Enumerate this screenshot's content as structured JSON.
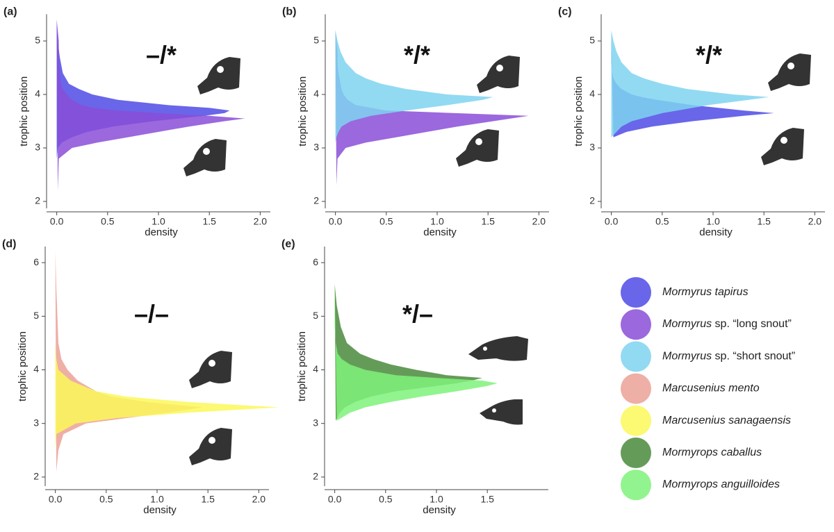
{
  "chart_data": [
    {
      "type": "density",
      "panel_label": "(a)",
      "annotation": "–/*",
      "xlabel": "density",
      "ylabel": "trophic position",
      "xlim": [
        -0.1,
        2.1
      ],
      "ylim": [
        1.87,
        5.5
      ],
      "xticks": [
        {
          "value": 0,
          "label": "0.0"
        },
        0.5,
        {
          "value": 1,
          "label": "1.0"
        },
        1.5,
        {
          "value": 2,
          "label": "2.0"
        }
      ],
      "yticks": [
        2,
        3,
        4,
        5
      ],
      "y": [
        2.2,
        2.8,
        3.0,
        3.1,
        3.2,
        3.3,
        3.4,
        3.5,
        3.55,
        3.6,
        3.65,
        3.7,
        3.75,
        3.8,
        3.9,
        4.0,
        4.1,
        4.2,
        4.4,
        4.7,
        5.0,
        5.4
      ],
      "series": [
        {
          "name": "Mormyrus tapirus",
          "color": "#4f4be6",
          "values": [
            0,
            0,
            0.01,
            0.05,
            0.15,
            0.3,
            0.55,
            0.95,
            1.2,
            1.45,
            1.65,
            1.7,
            1.5,
            1.1,
            0.6,
            0.35,
            0.22,
            0.12,
            0.06,
            0.03,
            0.01,
            0
          ]
        },
        {
          "name": "Mormyrus sp. “long snout”",
          "color": "#8a4ed8",
          "values": [
            0.01,
            0.02,
            0.15,
            0.4,
            0.7,
            1.0,
            1.3,
            1.65,
            1.85,
            1.5,
            1.0,
            0.6,
            0.35,
            0.25,
            0.15,
            0.1,
            0.06,
            0.04,
            0.03,
            0.02,
            0.02,
            0
          ]
        }
      ]
    },
    {
      "type": "density",
      "panel_label": "(b)",
      "annotation": "*/*",
      "xlabel": "density",
      "ylabel": "trophic position",
      "xlim": [
        -0.1,
        2.1
      ],
      "ylim": [
        1.87,
        5.5
      ],
      "xticks": [
        {
          "value": 0,
          "label": "0.0"
        },
        0.5,
        {
          "value": 1,
          "label": "1.0"
        },
        1.5,
        {
          "value": 2,
          "label": "2.0"
        }
      ],
      "yticks": [
        2,
        3,
        4,
        5
      ],
      "y": [
        2.3,
        2.8,
        3.0,
        3.1,
        3.2,
        3.3,
        3.4,
        3.5,
        3.6,
        3.7,
        3.8,
        3.9,
        3.95,
        4.0,
        4.1,
        4.2,
        4.3,
        4.4,
        4.6,
        4.8,
        5.0,
        5.2
      ],
      "series": [
        {
          "name": "Mormyrus sp. “long snout”",
          "color": "#8a4ed8",
          "values": [
            0.01,
            0.02,
            0.1,
            0.3,
            0.6,
            0.9,
            1.2,
            1.55,
            1.9,
            0.5,
            0.2,
            0.12,
            0.1,
            0.08,
            0.06,
            0.05,
            0.04,
            0.03,
            0.02,
            0.02,
            0.01,
            0
          ]
        },
        {
          "name": "Mormyrus sp. “short snout”",
          "color": "#7fd3f0",
          "values": [
            0,
            0,
            0,
            0,
            0.01,
            0.03,
            0.06,
            0.15,
            0.35,
            0.7,
            1.1,
            1.45,
            1.55,
            1.1,
            0.7,
            0.45,
            0.3,
            0.2,
            0.1,
            0.05,
            0.02,
            0
          ]
        }
      ]
    },
    {
      "type": "density",
      "panel_label": "(c)",
      "annotation": "*/*",
      "xlabel": "density",
      "ylabel": "trophic position",
      "xlim": [
        -0.1,
        2.1
      ],
      "ylim": [
        1.87,
        5.5
      ],
      "xticks": [
        {
          "value": 0,
          "label": "0.0"
        },
        0.5,
        {
          "value": 1,
          "label": "1.0"
        },
        1.5,
        {
          "value": 2,
          "label": "2.0"
        }
      ],
      "yticks": [
        2,
        3,
        4,
        5
      ],
      "y": [
        3.2,
        3.3,
        3.4,
        3.5,
        3.6,
        3.65,
        3.7,
        3.8,
        3.9,
        3.95,
        4.0,
        4.1,
        4.2,
        4.3,
        4.4,
        4.6,
        4.8,
        5.0,
        5.2
      ],
      "series": [
        {
          "name": "Mormyrus tapirus",
          "color": "#4f4be6",
          "values": [
            0.02,
            0.15,
            0.4,
            0.8,
            1.3,
            1.6,
            1.3,
            0.8,
            0.45,
            0.3,
            0.2,
            0.1,
            0.05,
            0.02,
            0.01,
            0,
            0,
            0,
            0
          ]
        },
        {
          "name": "Mormyrus sp. “short snout”",
          "color": "#7fd3f0",
          "values": [
            0,
            0.05,
            0.1,
            0.2,
            0.4,
            0.5,
            0.65,
            0.95,
            1.35,
            1.55,
            1.2,
            0.75,
            0.5,
            0.32,
            0.2,
            0.1,
            0.05,
            0.02,
            0
          ]
        }
      ]
    },
    {
      "type": "density",
      "panel_label": "(d)",
      "annotation": "–/–",
      "xlabel": "density",
      "ylabel": "trophic position",
      "xlim": [
        -0.1,
        2.1
      ],
      "ylim": [
        1.83,
        6.3
      ],
      "xticks": [
        {
          "value": 0,
          "label": "0.0"
        },
        0.5,
        {
          "value": 1,
          "label": "1.0"
        },
        1.5,
        {
          "value": 2,
          "label": "2.0"
        }
      ],
      "yticks": [
        2,
        3,
        4,
        5,
        6
      ],
      "y": [
        2.1,
        2.5,
        2.8,
        3.0,
        3.1,
        3.2,
        3.3,
        3.4,
        3.5,
        3.6,
        3.8,
        4.0,
        4.2,
        4.5,
        5.0,
        5.5,
        6.2
      ],
      "series": [
        {
          "name": "Marcusenius mento",
          "color": "#eba198",
          "values": [
            0.01,
            0.03,
            0.08,
            0.3,
            0.7,
            1.1,
            1.45,
            0.9,
            0.55,
            0.4,
            0.22,
            0.12,
            0.06,
            0.03,
            0.02,
            0.01,
            0
          ]
        },
        {
          "name": "Marcusenius sanagaensis",
          "color": "#fbf85a",
          "values": [
            0,
            0,
            0.01,
            0.2,
            0.6,
            1.3,
            2.2,
            1.3,
            0.7,
            0.4,
            0.15,
            0.03,
            0.01,
            0,
            0,
            0,
            0
          ]
        }
      ]
    },
    {
      "type": "density",
      "panel_label": "(e)",
      "annotation": "*/–",
      "xlabel": "density",
      "ylabel": "trophic position",
      "xlim": [
        -0.1,
        2.1
      ],
      "ylim": [
        1.83,
        6.3
      ],
      "xticks": [
        {
          "value": 0,
          "label": "0.0"
        },
        0.5,
        {
          "value": 1,
          "label": "1.0"
        },
        1.5
      ],
      "yticks": [
        2,
        3,
        4,
        5,
        6
      ],
      "y": [
        3.05,
        3.2,
        3.3,
        3.4,
        3.5,
        3.6,
        3.7,
        3.75,
        3.8,
        3.85,
        3.9,
        4.0,
        4.1,
        4.2,
        4.3,
        4.5,
        4.8,
        5.2,
        5.6
      ],
      "series": [
        {
          "name": "Mormyrops caballus",
          "color": "#4a8a3c",
          "values": [
            0.01,
            0.05,
            0.1,
            0.2,
            0.35,
            0.6,
            1.0,
            1.2,
            1.35,
            1.45,
            1.1,
            0.8,
            0.55,
            0.38,
            0.25,
            0.12,
            0.06,
            0.02,
            0
          ]
        },
        {
          "name": "Mormyrops anguilloides",
          "color": "#7ff27a",
          "values": [
            0.02,
            0.15,
            0.3,
            0.55,
            0.85,
            1.2,
            1.5,
            1.6,
            1.45,
            1.0,
            0.6,
            0.3,
            0.15,
            0.07,
            0.03,
            0.01,
            0,
            0,
            0
          ]
        }
      ]
    }
  ]
}
